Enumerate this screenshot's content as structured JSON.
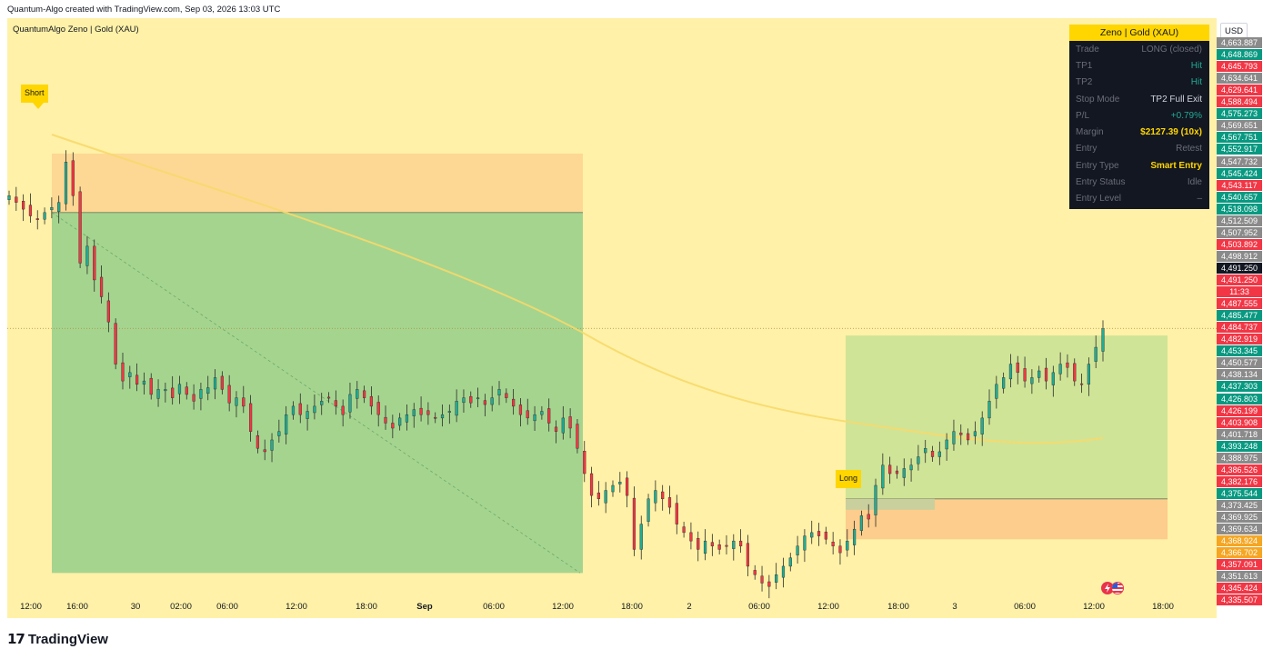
{
  "header": {
    "credit": "Quantum-Algo created with TradingView.com, Sep 03, 2026 13:03 UTC"
  },
  "chart": {
    "legend_title": "QuantumAlgo Zeno | Gold (XAU)",
    "tag_short": "Short",
    "tag_long": "Long",
    "currency": "USD",
    "current_price": "4,491.250",
    "countdown": "11:33",
    "icons": [
      "lightning-icon",
      "us-flag-icon"
    ],
    "colors": {
      "background": "#fff1a7",
      "up": "#22ab94",
      "down": "#f23645",
      "profit_zone": "#a5d48f",
      "stop_zone": "#fdd894",
      "long_profit_zone": "#d0e497",
      "long_stop_zone": "#fccd8c",
      "moving_average": "#f6d96b"
    }
  },
  "chart_data": {
    "type": "candlestick",
    "title": "QuantumAlgo Zeno | Gold (XAU)",
    "x_ticks": [
      "12:00",
      "16:00",
      "30",
      "02:00",
      "06:00",
      "12:00",
      "18:00",
      "Sep",
      "06:00",
      "12:00",
      "18:00",
      "2",
      "06:00",
      "12:00",
      "18:00",
      "3",
      "06:00",
      "12:00",
      "18:00"
    ],
    "ylim": [
      4330,
      4670
    ],
    "trades": [
      {
        "side": "Short",
        "entry": 4560,
        "target": 4346,
        "stop": 4595
      },
      {
        "side": "Long",
        "entry": 4390,
        "target": 4487,
        "stop": 4366
      }
    ],
    "close_path": [
      4570,
      4566,
      4562,
      4558,
      4556,
      4560,
      4563,
      4566,
      4590,
      4570,
      4530,
      4540,
      4520,
      4510,
      4495,
      4470,
      4460,
      4465,
      4458,
      4460,
      4452,
      4455,
      4455,
      4450,
      4458,
      4452,
      4448,
      4455,
      4456,
      4462,
      4455,
      4447,
      4450,
      4445,
      4430,
      4420,
      4418,
      4425,
      4430,
      4440,
      4445,
      4440,
      4442,
      4445,
      4448,
      4450,
      4445,
      4440,
      4452,
      4455,
      4450,
      4445,
      4440,
      4435,
      4432,
      4438,
      4440,
      4443,
      4440,
      4440,
      4438,
      4440,
      4442,
      4448,
      4450,
      4447,
      4450,
      4446,
      4450,
      4455,
      4450,
      4445,
      4440,
      4438,
      4440,
      4442,
      4435,
      4430,
      4438,
      4432,
      4420,
      4405,
      4392,
      4390,
      4395,
      4398,
      4400,
      4392,
      4360,
      4375,
      4390,
      4395,
      4390,
      4385,
      4375,
      4370,
      4365,
      4360,
      4365,
      4362,
      4360,
      4362,
      4365,
      4362,
      4350,
      4345,
      4340,
      4338,
      4345,
      4350,
      4355,
      4362,
      4368,
      4370,
      4368,
      4366,
      4362,
      4358,
      4365,
      4372,
      4380,
      4378,
      4398,
      4410,
      4405,
      4405,
      4408,
      4410,
      4415,
      4420,
      4415,
      4418,
      4425,
      4430,
      4428,
      4425,
      4430,
      4438,
      4448,
      4458,
      4462,
      4470,
      4465,
      4460,
      4462,
      4466,
      4460,
      4465,
      4470,
      4468,
      4460,
      4458,
      4470,
      4480,
      4491
    ]
  },
  "price_axis": [
    {
      "value": "4,663.887",
      "kind": "gray"
    },
    {
      "value": "4,648.869",
      "kind": "green"
    },
    {
      "value": "4,645.793",
      "kind": "red"
    },
    {
      "value": "4,634.641",
      "kind": "gray"
    },
    {
      "value": "4,629.641",
      "kind": "red"
    },
    {
      "value": "4,588.494",
      "kind": "red"
    },
    {
      "value": "4,575.273",
      "kind": "green"
    },
    {
      "value": "4,569.651",
      "kind": "gray"
    },
    {
      "value": "4,567.751",
      "kind": "green"
    },
    {
      "value": "4,552.917",
      "kind": "green"
    },
    {
      "value": "4,547.732",
      "kind": "gray"
    },
    {
      "value": "4,545.424",
      "kind": "green"
    },
    {
      "value": "4,543.117",
      "kind": "red"
    },
    {
      "value": "4,540.657",
      "kind": "green"
    },
    {
      "value": "4,518.098",
      "kind": "green"
    },
    {
      "value": "4,512.509",
      "kind": "gray"
    },
    {
      "value": "4,507.952",
      "kind": "gray"
    },
    {
      "value": "4,503.892",
      "kind": "red"
    },
    {
      "value": "4,498.912",
      "kind": "gray"
    },
    {
      "value": "4,491.250",
      "kind": "black"
    },
    {
      "value": "4,491.250",
      "kind": "red"
    },
    {
      "value": "11:33",
      "kind": "red"
    },
    {
      "value": "4,487.555",
      "kind": "red"
    },
    {
      "value": "4,485.477",
      "kind": "green"
    },
    {
      "value": "4,484.737",
      "kind": "red"
    },
    {
      "value": "4,482.919",
      "kind": "red"
    },
    {
      "value": "4,453.345",
      "kind": "green"
    },
    {
      "value": "4,450.577",
      "kind": "gray"
    },
    {
      "value": "4,438.134",
      "kind": "gray"
    },
    {
      "value": "4,437.303",
      "kind": "green"
    },
    {
      "value": "4,426.803",
      "kind": "green"
    },
    {
      "value": "4,426.199",
      "kind": "red"
    },
    {
      "value": "4,403.908",
      "kind": "red"
    },
    {
      "value": "4,401.718",
      "kind": "gray"
    },
    {
      "value": "4,393.248",
      "kind": "green"
    },
    {
      "value": "4,388.975",
      "kind": "gray"
    },
    {
      "value": "4,386.526",
      "kind": "red"
    },
    {
      "value": "4,382.176",
      "kind": "red"
    },
    {
      "value": "4,375.544",
      "kind": "green"
    },
    {
      "value": "4,373.425",
      "kind": "gray"
    },
    {
      "value": "4,369.925",
      "kind": "gray"
    },
    {
      "value": "4,369.634",
      "kind": "gray"
    },
    {
      "value": "4,368.924",
      "kind": "orange"
    },
    {
      "value": "4,366.702",
      "kind": "orange"
    },
    {
      "value": "4,357.091",
      "kind": "red"
    },
    {
      "value": "4,351.613",
      "kind": "gray"
    },
    {
      "value": "4,345.424",
      "kind": "red"
    },
    {
      "value": "4,335.507",
      "kind": "red"
    }
  ],
  "panel": {
    "title": "Zeno | Gold (XAU)",
    "rows": [
      {
        "label": "Trade",
        "value": "LONG (closed)",
        "style": "dim"
      },
      {
        "label": "TP1",
        "value": "Hit",
        "style": "hl"
      },
      {
        "label": "TP2",
        "value": "Hit",
        "style": "hl"
      },
      {
        "label": "Stop Mode",
        "value": "TP2 Full Exit",
        "style": "wh"
      },
      {
        "label": "P/L",
        "value": "+0.79%",
        "style": "hl"
      },
      {
        "label": "Margin",
        "value": "$2127.39 (10x)",
        "style": "gold"
      },
      {
        "label": "Entry",
        "value": "Retest",
        "style": "dim"
      },
      {
        "label": "Entry Type",
        "value": "Smart Entry",
        "style": "gold"
      },
      {
        "label": "Entry Status",
        "value": "Idle",
        "style": "dim"
      },
      {
        "label": "Entry Level",
        "value": "–",
        "style": "dim"
      }
    ]
  },
  "footer": {
    "brand": "TradingView",
    "brand_mark": "17"
  }
}
